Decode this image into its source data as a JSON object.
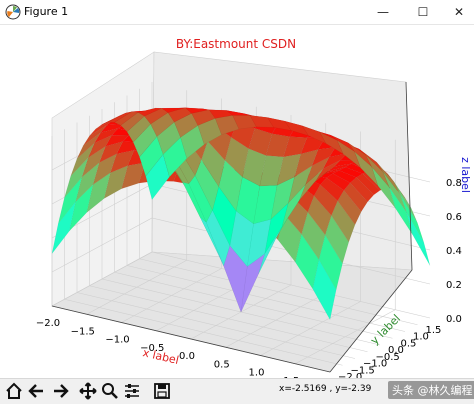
{
  "window": {
    "title": "Figure 1",
    "minimize_glyph": "—",
    "maximize_glyph": "☐",
    "close_glyph": "✕"
  },
  "plot": {
    "title": "BY:Eastmount CSDN",
    "title_color": "#e02020",
    "xlabel": "x label",
    "ylabel": "y label",
    "zlabel": "z label",
    "xlabel_color": "#e02020",
    "ylabel_color": "#2e8b2e",
    "zlabel_color": "#1515d0",
    "x_ticks": [
      "−2.0",
      "−1.5",
      "−1.0",
      "−0.5",
      "0.0",
      "0.5",
      "1.0",
      "1.5"
    ],
    "y_ticks": [
      "−2.0",
      "−1.5",
      "−1.0",
      "−0.5",
      "0.0",
      "0.5",
      "1.0",
      "1.5"
    ],
    "z_ticks": [
      "0.0",
      "0.2",
      "0.4",
      "0.6",
      "0.8"
    ],
    "colormap": "rainbow"
  },
  "chart_data": {
    "type": "surface",
    "function": "z = sin(sqrt(x^2 + y^2))",
    "x_range": [
      -2,
      2
    ],
    "y_range": [
      -2,
      2
    ],
    "zlim": [
      0,
      1
    ],
    "grid": true
  },
  "toolbar": {
    "buttons": [
      "home-icon",
      "back-icon",
      "forward-icon",
      "pan-icon",
      "zoom-icon",
      "configure-subplots-icon",
      "save-icon"
    ],
    "coords": "x=-2.5169      , y=-2.39"
  },
  "watermark": "头条 @林久编程"
}
